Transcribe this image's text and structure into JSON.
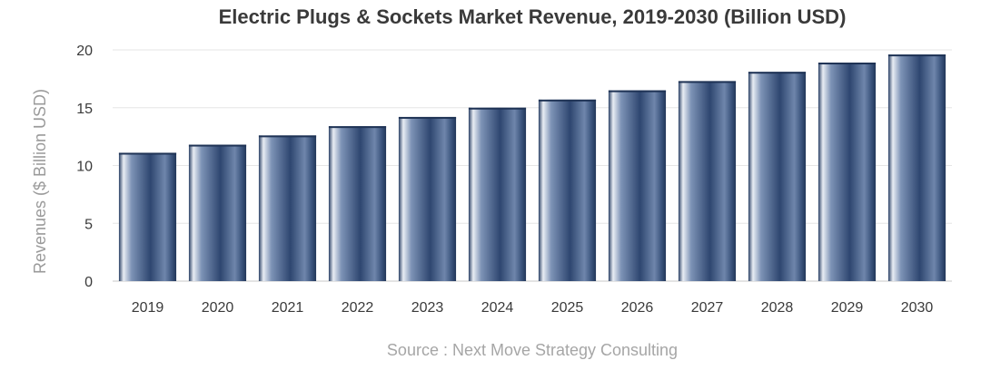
{
  "chart_data": {
    "type": "bar",
    "title": "Electric Plugs & Sockets Market Revenue, 2019-2030 (Billion USD)",
    "xlabel": "",
    "ylabel": "Revenues ($ Billion USD)",
    "source": "Source : Next Move Strategy Consulting",
    "categories": [
      "2019",
      "2020",
      "2021",
      "2022",
      "2023",
      "2024",
      "2025",
      "2026",
      "2027",
      "2028",
      "2029",
      "2030"
    ],
    "values": [
      11.1,
      11.8,
      12.6,
      13.4,
      14.2,
      15.0,
      15.7,
      16.5,
      17.3,
      18.1,
      18.9,
      19.6
    ],
    "ylim": [
      0,
      20
    ],
    "yticks": [
      0,
      5,
      10,
      15,
      20
    ],
    "grid": true,
    "colors": {
      "bar_dark": "#23395f",
      "bar_mid": "#4d6790",
      "bar_light": "#e8ecf3",
      "grid": "#e6e6e6",
      "baseline": "#c8c8c8"
    }
  }
}
